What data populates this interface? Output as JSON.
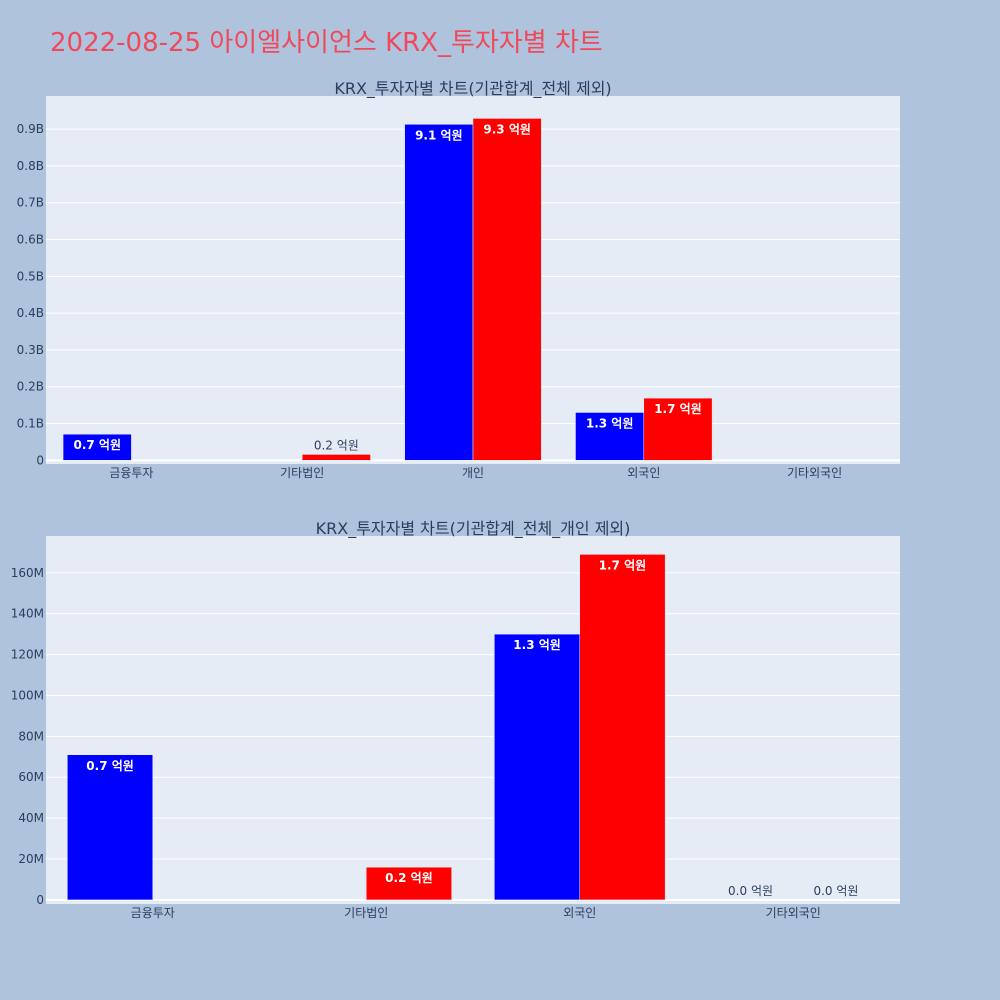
{
  "page": {
    "title": "2022-08-25 아이엘사이언스 KRX_투자자별 차트"
  },
  "chart_data": [
    {
      "type": "bar",
      "title": "KRX_투자자별 차트(기관합계_전체 제외)",
      "categories": [
        "금융투자",
        "기타법인",
        "개인",
        "외국인",
        "기타외국인"
      ],
      "yticks": [
        {
          "value": 0,
          "label": "0"
        },
        {
          "value": 100000000,
          "label": "0.1B"
        },
        {
          "value": 200000000,
          "label": "0.2B"
        },
        {
          "value": 300000000,
          "label": "0.3B"
        },
        {
          "value": 400000000,
          "label": "0.4B"
        },
        {
          "value": 500000000,
          "label": "0.5B"
        },
        {
          "value": 600000000,
          "label": "0.6B"
        },
        {
          "value": 700000000,
          "label": "0.7B"
        },
        {
          "value": 800000000,
          "label": "0.8B"
        },
        {
          "value": 900000000,
          "label": "0.9B"
        }
      ],
      "ylim": [
        -10000000,
        990000000
      ],
      "series": [
        {
          "color": "#0000ff",
          "values": [
            71000000,
            null,
            913000000,
            130000000,
            null
          ],
          "labels": [
            "0.7 억원",
            "",
            "9.1 억원",
            "1.3 억원",
            ""
          ]
        },
        {
          "color": "#ff0000",
          "values": [
            null,
            16000000,
            929000000,
            169000000,
            null
          ],
          "labels": [
            "",
            "0.2 억원",
            "9.3 억원",
            "1.7 억원",
            ""
          ]
        }
      ],
      "grid": true,
      "legend": "none"
    },
    {
      "type": "bar",
      "title": "KRX_투자자별 차트(기관합계_전체_개인 제외)",
      "categories": [
        "금융투자",
        "기타법인",
        "외국인",
        "기타외국인"
      ],
      "yticks": [
        {
          "value": 0,
          "label": "0"
        },
        {
          "value": 20000000,
          "label": "20M"
        },
        {
          "value": 40000000,
          "label": "40M"
        },
        {
          "value": 60000000,
          "label": "60M"
        },
        {
          "value": 80000000,
          "label": "80M"
        },
        {
          "value": 100000000,
          "label": "100M"
        },
        {
          "value": 120000000,
          "label": "120M"
        },
        {
          "value": 140000000,
          "label": "140M"
        },
        {
          "value": 160000000,
          "label": "160M"
        }
      ],
      "ylim": [
        -2000000,
        178000000
      ],
      "series": [
        {
          "color": "#0000ff",
          "values": [
            71000000,
            null,
            130000000,
            0
          ],
          "labels": [
            "0.7 억원",
            "",
            "1.3 억원",
            "0.0 억원"
          ]
        },
        {
          "color": "#ff0000",
          "values": [
            null,
            16000000,
            169000000,
            0
          ],
          "labels": [
            "",
            "0.2 억원",
            "1.7 억원",
            "0.0 억원"
          ]
        }
      ],
      "grid": true,
      "legend": "none"
    }
  ]
}
